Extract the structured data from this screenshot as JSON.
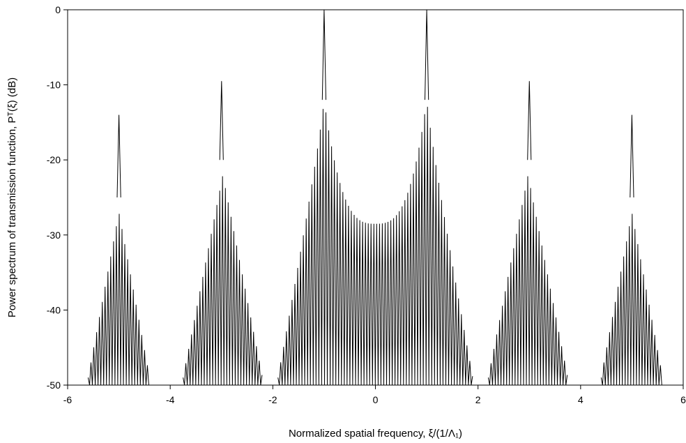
{
  "chart_data": {
    "type": "line",
    "xlabel": "Normalized spatial frequency, ξ/(1/Λ₁)",
    "ylabel": "Power spectrum of transmission function, Pᵀ(ξ) (dB)",
    "xlim": [
      -6,
      6
    ],
    "ylim": [
      -50,
      0
    ],
    "x_ticks": [
      -6,
      -4,
      -2,
      0,
      2,
      4,
      6
    ],
    "y_ticks": [
      0,
      -10,
      -20,
      -30,
      -40,
      -50
    ],
    "x_tick_labels": [
      "-6",
      "-4",
      "-2",
      "0",
      "2",
      "4",
      "6"
    ],
    "y_tick_labels": [
      "0",
      "-10",
      "-20",
      "-30",
      "-40",
      "-50"
    ],
    "grid": false,
    "legend": "none",
    "line_color": "#000000",
    "series": [
      {
        "peaks": [
          {
            "x": -5,
            "y": -14
          },
          {
            "x": -3,
            "y": -9.5
          },
          {
            "x": -1,
            "y": 0
          },
          {
            "x": 1,
            "y": 0
          },
          {
            "x": 3,
            "y": -9.5
          },
          {
            "x": 5,
            "y": -14
          }
        ],
        "envelope": {
          "lobes": [
            {
              "x_min": -5.6,
              "x_max": -4.4,
              "center": -5,
              "edge_y": -49,
              "base_y": -27
            },
            {
              "x_min": -3.75,
              "x_max": -2.2,
              "center": -3,
              "edge_y": -49,
              "base_y": -22
            },
            {
              "x_min": -1.9,
              "x_max": 1.9,
              "center": 0,
              "edge_y": -49,
              "base_y": -28.5
            },
            {
              "x_min": 2.2,
              "x_max": 3.75,
              "center": 3,
              "edge_y": -49,
              "base_y": -22
            },
            {
              "x_min": 4.4,
              "x_max": 5.6,
              "center": 5,
              "edge_y": -49,
              "base_y": -27
            }
          ]
        }
      }
    ]
  }
}
